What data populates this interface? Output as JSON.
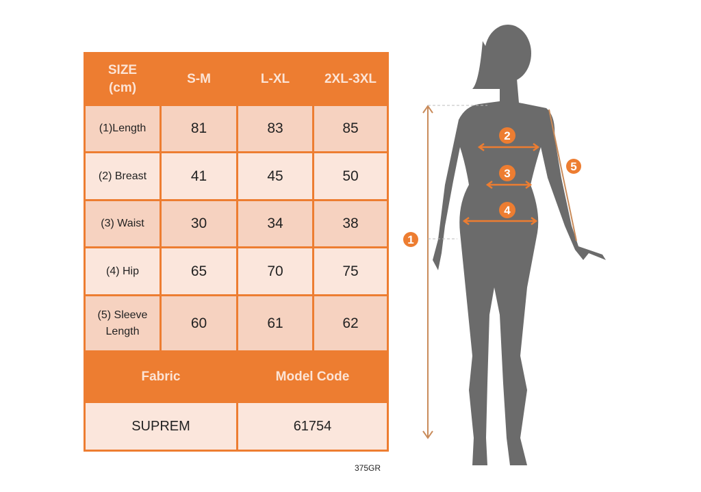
{
  "table": {
    "header": [
      "SIZE\n(cm)",
      "S-M",
      "L-XL",
      "2XL-3XL"
    ],
    "rows": [
      {
        "label": "(1)Length",
        "values": [
          "81",
          "83",
          "85"
        ]
      },
      {
        "label": "(2) Breast",
        "values": [
          "41",
          "45",
          "50"
        ]
      },
      {
        "label": "(3) Waist",
        "values": [
          "30",
          "34",
          "38"
        ]
      },
      {
        "label": "(4) Hip",
        "values": [
          "65",
          "70",
          "75"
        ]
      },
      {
        "label": "(5) Sleeve Length",
        "values": [
          "60",
          "61",
          "62"
        ]
      }
    ],
    "fabric_label": "Fabric",
    "model_code_label": "Model Code",
    "fabric": "SUPREM",
    "model_code": "61754"
  },
  "product_code": "375GR",
  "figure": {
    "markers": [
      "1",
      "2",
      "3",
      "4",
      "5"
    ],
    "accent": "#ED7D31",
    "silhouette": "#6B6B6B"
  }
}
